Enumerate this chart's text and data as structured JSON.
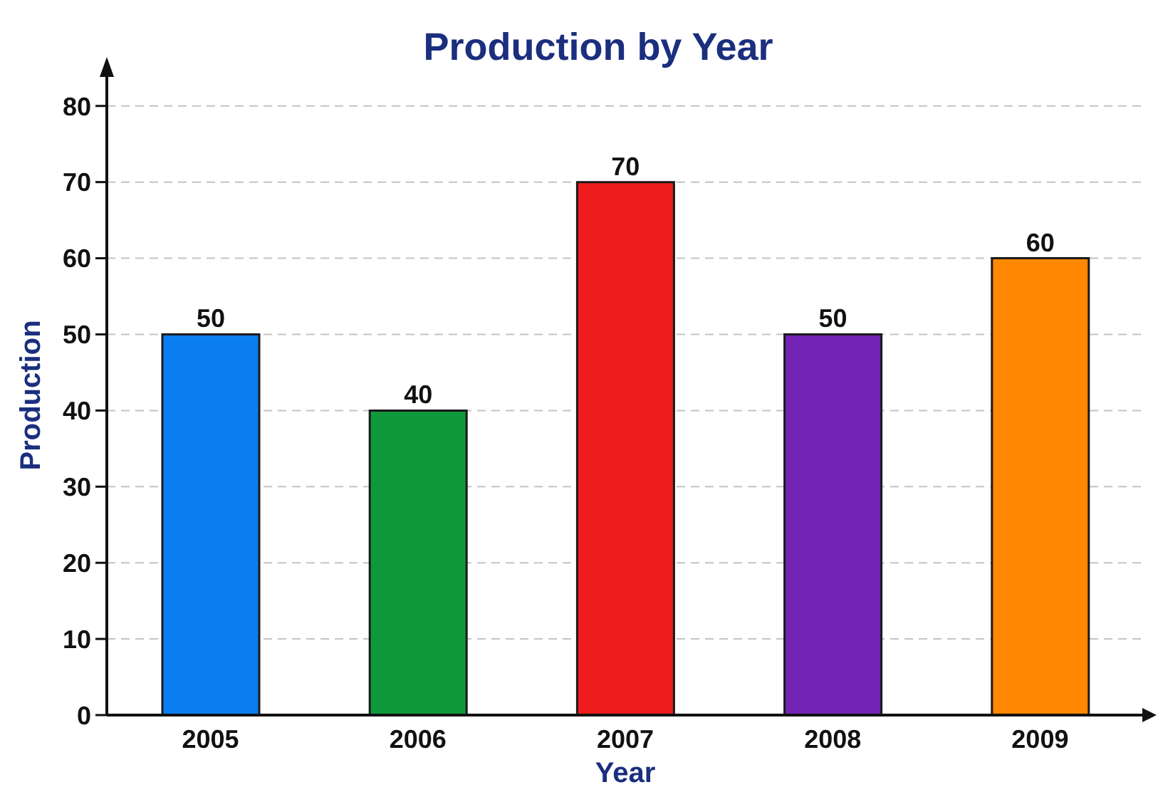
{
  "chart_data": {
    "type": "bar",
    "title": "Production by Year",
    "xlabel": "Year",
    "ylabel": "Production",
    "categories": [
      "2005",
      "2006",
      "2007",
      "2008",
      "2009"
    ],
    "values": [
      50,
      40,
      70,
      50,
      60
    ],
    "colors": [
      "#0a7ef0",
      "#10993a",
      "#ee1c1c",
      "#7424b4",
      "#ff8800"
    ],
    "ylim": [
      0,
      84
    ],
    "yticks": [
      0,
      10,
      20,
      30,
      40,
      50,
      60,
      70,
      80
    ],
    "grid": "y",
    "data_labels": true
  }
}
